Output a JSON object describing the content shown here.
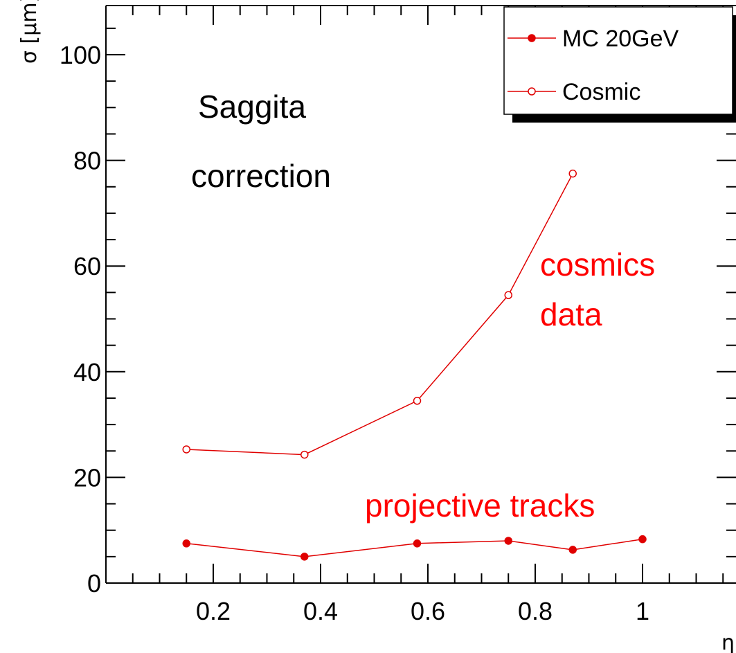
{
  "chart_data": {
    "type": "line",
    "xlabel": "η",
    "ylabel": "σ [μm]",
    "xlim": [
      0.0,
      1.2
    ],
    "ylim": [
      0,
      110
    ],
    "x_ticks": [
      "0.2",
      "0.4",
      "0.6",
      "0.8",
      "1"
    ],
    "x_tick_values": [
      0.2,
      0.4,
      0.6,
      0.8,
      1.0
    ],
    "y_ticks": [
      "0",
      "20",
      "40",
      "60",
      "80",
      "100"
    ],
    "y_tick_values": [
      0,
      20,
      40,
      60,
      80,
      100
    ],
    "grid": false,
    "legend_position": "top-right",
    "series": [
      {
        "name": "MC 20GeV",
        "marker": "filled-circle",
        "color": "#e00000",
        "x": [
          0.15,
          0.37,
          0.58,
          0.75,
          0.87,
          1.0
        ],
        "y": [
          7.5,
          5.0,
          7.5,
          8.0,
          6.3,
          8.3
        ]
      },
      {
        "name": "Cosmic",
        "marker": "open-circle",
        "color": "#e00000",
        "x": [
          0.15,
          0.37,
          0.58,
          0.75,
          0.87
        ],
        "y": [
          25.3,
          24.3,
          34.5,
          54.5,
          77.5
        ]
      }
    ],
    "annotations": [
      {
        "text": "Saggita",
        "color": "#000000"
      },
      {
        "text": "correction",
        "color": "#000000"
      },
      {
        "text": "cosmics",
        "color": "#ff0000"
      },
      {
        "text": "data",
        "color": "#ff0000"
      },
      {
        "text": "projective tracks",
        "color": "#ff0000"
      }
    ]
  }
}
